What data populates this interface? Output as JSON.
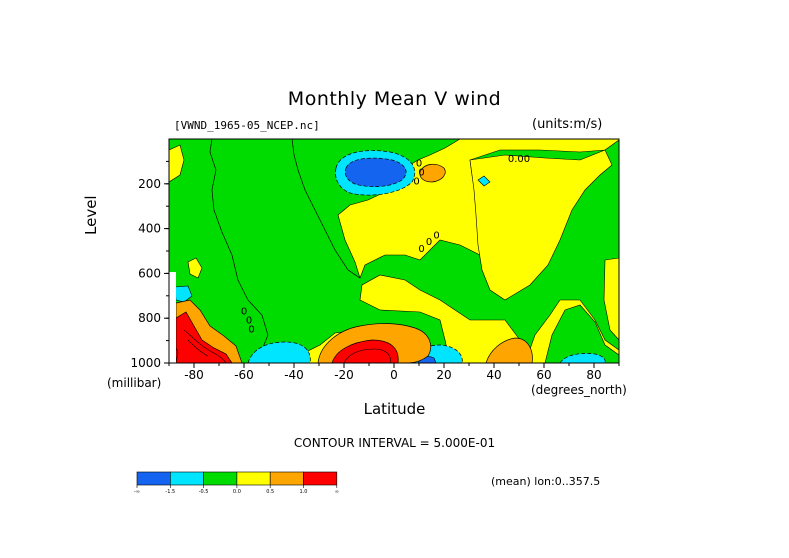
{
  "chart_data": {
    "type": "heatmap",
    "title": "Monthly Mean V wind",
    "dataset_label": "[VWND_1965-05_NCEP.nc]",
    "units_label": "(units:m/s)",
    "xlabel": "Latitude",
    "x_unit_label": "(degrees_north)",
    "ylabel": "Level",
    "y_unit_label": "(millibar)",
    "xlim": [
      -90,
      90
    ],
    "ylim": [
      1000,
      0
    ],
    "x_ticks": [
      -80,
      -60,
      -40,
      -20,
      0,
      20,
      40,
      60,
      80
    ],
    "y_ticks": [
      200,
      400,
      600,
      800,
      1000
    ],
    "contour_interval_text": "CONTOUR INTERVAL = 5.000E-01",
    "mean_label": "(mean) lon:0..357.5",
    "contour_labels": [
      {
        "text": "0.00",
        "lat": 50,
        "level": 90
      },
      {
        "text": "0",
        "lat": 10,
        "level": 110
      },
      {
        "text": "0",
        "lat": 11,
        "level": 150
      },
      {
        "text": "0",
        "lat": 9,
        "level": 190
      },
      {
        "text": "0",
        "lat": 11,
        "level": 490
      },
      {
        "text": "0",
        "lat": 14,
        "level": 460
      },
      {
        "text": "0",
        "lat": 17,
        "level": 430
      },
      {
        "text": "0",
        "lat": -60,
        "level": 770
      },
      {
        "text": "0",
        "lat": -58,
        "level": 810
      },
      {
        "text": "0",
        "lat": -57,
        "level": 850
      }
    ],
    "colorbar": {
      "colors": [
        "#1464f0",
        "#00e5ff",
        "#00dc00",
        "#ffff00",
        "#ffa500",
        "#ff0000"
      ],
      "labels": [
        "-∞",
        "-1.5",
        "-0.5",
        "0.0",
        "0.5",
        "1.0",
        "∞"
      ]
    },
    "regions": [
      {
        "class": "negative",
        "color": "#00dc00"
      },
      {
        "class": "positive",
        "color": "#ffff00"
      },
      {
        "class": "strong_negative",
        "color": "#00e5ff"
      },
      {
        "class": "very_strong_negative",
        "color": "#1464f0"
      },
      {
        "class": "strong_positive",
        "color": "#ffa500"
      },
      {
        "class": "very_strong_positive",
        "color": "#ff0000"
      }
    ]
  }
}
